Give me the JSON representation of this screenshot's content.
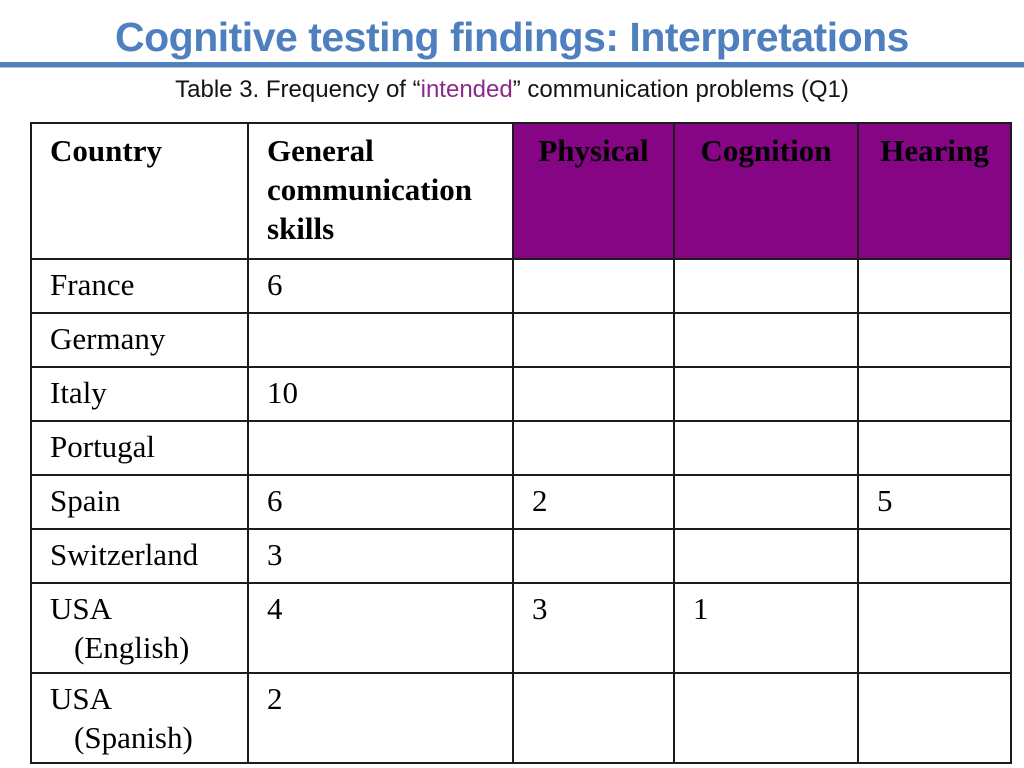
{
  "header": {
    "title": "Cognitive testing findings: Interpretations"
  },
  "caption": {
    "prefix": "Table 3. Frequency of “",
    "highlight": "intended",
    "suffix": "” communication problems (Q1)"
  },
  "table": {
    "headers": [
      "Country",
      "General communication skills",
      "Physical",
      "Cognition",
      "Hearing"
    ],
    "rows": [
      {
        "country": "France",
        "country_sub": "",
        "general": "6",
        "physical": "",
        "cognition": "",
        "hearing": ""
      },
      {
        "country": "Germany",
        "country_sub": "",
        "general": "",
        "physical": "",
        "cognition": "",
        "hearing": ""
      },
      {
        "country": "Italy",
        "country_sub": "",
        "general": "10",
        "physical": "",
        "cognition": "",
        "hearing": ""
      },
      {
        "country": "Portugal",
        "country_sub": "",
        "general": "",
        "physical": "",
        "cognition": "",
        "hearing": ""
      },
      {
        "country": "Spain",
        "country_sub": "",
        "general": "6",
        "physical": "2",
        "cognition": "",
        "hearing": "5"
      },
      {
        "country": "Switzerland",
        "country_sub": "",
        "general": "3",
        "physical": "",
        "cognition": "",
        "hearing": ""
      },
      {
        "country": "USA",
        "country_sub": "(English)",
        "general": "4",
        "physical": "3",
        "cognition": "1",
        "hearing": ""
      },
      {
        "country": "USA",
        "country_sub": "(Spanish)",
        "general": "2",
        "physical": "",
        "cognition": "",
        "hearing": ""
      }
    ]
  },
  "colors": {
    "accent_blue": "#4e80bf",
    "header_purple": "#850585",
    "highlight_purple": "#8a2b8a"
  }
}
